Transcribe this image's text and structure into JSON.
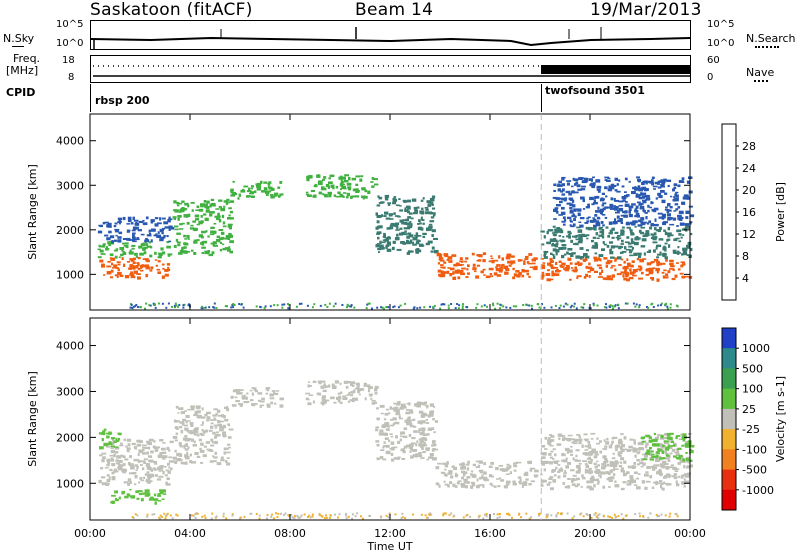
{
  "header": {
    "site": "Saskatoon (fitACF)",
    "beam": "Beam 14",
    "date": "19/Mar/2013"
  },
  "top_panels": {
    "nsky_label": "N.Sky",
    "nsearch_label": "N.Search",
    "noise_top_tick": "10^5",
    "noise_bottom_tick": "10^0",
    "freq_label": "Freq.",
    "freq_unit": "[MHz]",
    "freq_ticks": [
      "18",
      "8"
    ],
    "nave_label": "Nave",
    "nave_ticks": [
      "60",
      "0"
    ],
    "cpid_label": "CPID",
    "cpid_1": "rbsp 200",
    "cpid_2": "twofsound 3501"
  },
  "chart_data": [
    {
      "type": "heatmap",
      "name": "power",
      "ylabel": "Slant Range [km]",
      "xlabel": "Time UT",
      "x_ticks": [
        "00:00",
        "04:00",
        "08:00",
        "12:00",
        "16:00",
        "20:00",
        "00:00"
      ],
      "y_ticks": [
        1000,
        2000,
        3000,
        4000
      ],
      "ylim": [
        200,
        4600
      ],
      "xlim_hours": [
        0,
        24
      ],
      "colorbar_label": "Power [dB]",
      "colorbar_ticks": [
        4,
        8,
        12,
        16,
        20,
        24,
        28
      ],
      "colorbar_colors": [
        "#0018d8",
        "#2858b0",
        "#3a7a70",
        "#40b040",
        "#c8c020",
        "#f0a018",
        "#f05c10",
        "#e81818"
      ],
      "bands": [
        {
          "t0": 0.3,
          "t1": 3.2,
          "r0": 950,
          "r1": 1400,
          "level": 26
        },
        {
          "t0": 0.3,
          "t1": 3.2,
          "r0": 1400,
          "r1": 1750,
          "level": 14
        },
        {
          "t0": 0.3,
          "t1": 3.2,
          "r0": 1750,
          "r1": 2300,
          "level": 6
        },
        {
          "t0": 3.3,
          "t1": 5.6,
          "r0": 1450,
          "r1": 2700,
          "level": 12
        },
        {
          "t0": 5.6,
          "t1": 7.6,
          "r0": 2700,
          "r1": 3100,
          "level": 12
        },
        {
          "t0": 8.6,
          "t1": 11.4,
          "r0": 2750,
          "r1": 3250,
          "level": 12
        },
        {
          "t0": 11.4,
          "t1": 13.8,
          "r0": 1500,
          "r1": 2800,
          "level": 10
        },
        {
          "t0": 13.8,
          "t1": 17.8,
          "r0": 950,
          "r1": 1500,
          "level": 26
        },
        {
          "t0": 18.0,
          "t1": 24.0,
          "r0": 900,
          "r1": 1400,
          "level": 27
        },
        {
          "t0": 18.0,
          "t1": 24.0,
          "r0": 1400,
          "r1": 2100,
          "level": 10
        },
        {
          "t0": 18.5,
          "t1": 24.0,
          "r0": 2100,
          "r1": 3200,
          "level": 5
        }
      ]
    },
    {
      "type": "heatmap",
      "name": "velocity",
      "ylabel": "Slant Range [km]",
      "xlabel": "Time UT",
      "x_ticks": [
        "00:00",
        "04:00",
        "08:00",
        "12:00",
        "16:00",
        "20:00",
        "00:00"
      ],
      "y_ticks": [
        1000,
        2000,
        3000,
        4000
      ],
      "ylim": [
        200,
        4600
      ],
      "xlim_hours": [
        0,
        24
      ],
      "colorbar_label": "Velocity [m s-1]",
      "colorbar_ticks": [
        1000,
        500,
        100,
        25,
        -25,
        -100,
        -500,
        -1000
      ],
      "colorbar_colors": [
        "#2040c8",
        "#2e8a8a",
        "#3aa050",
        "#60c040",
        "#c0c0b8",
        "#f0b030",
        "#f08020",
        "#e83010",
        "#e00000"
      ],
      "bands": [
        {
          "t0": 0.3,
          "t1": 3.2,
          "r0": 1000,
          "r1": 2000,
          "class": "ground"
        },
        {
          "t0": 0.3,
          "t1": 1.2,
          "r0": 1800,
          "r1": 2200,
          "class": "pos"
        },
        {
          "t0": 0.8,
          "t1": 3.0,
          "r0": 600,
          "r1": 900,
          "class": "pos"
        },
        {
          "t0": 3.3,
          "t1": 5.6,
          "r0": 1450,
          "r1": 2700,
          "class": "ground"
        },
        {
          "t0": 5.6,
          "t1": 7.6,
          "r0": 2700,
          "r1": 3100,
          "class": "ground"
        },
        {
          "t0": 8.6,
          "t1": 11.4,
          "r0": 2750,
          "r1": 3250,
          "class": "ground"
        },
        {
          "t0": 11.4,
          "t1": 13.8,
          "r0": 1500,
          "r1": 2800,
          "class": "ground"
        },
        {
          "t0": 13.8,
          "t1": 17.8,
          "r0": 950,
          "r1": 1500,
          "class": "ground"
        },
        {
          "t0": 18.0,
          "t1": 24.0,
          "r0": 900,
          "r1": 2100,
          "class": "ground"
        },
        {
          "t0": 22.0,
          "t1": 24.0,
          "r0": 1500,
          "r1": 2100,
          "class": "pos"
        }
      ]
    }
  ]
}
